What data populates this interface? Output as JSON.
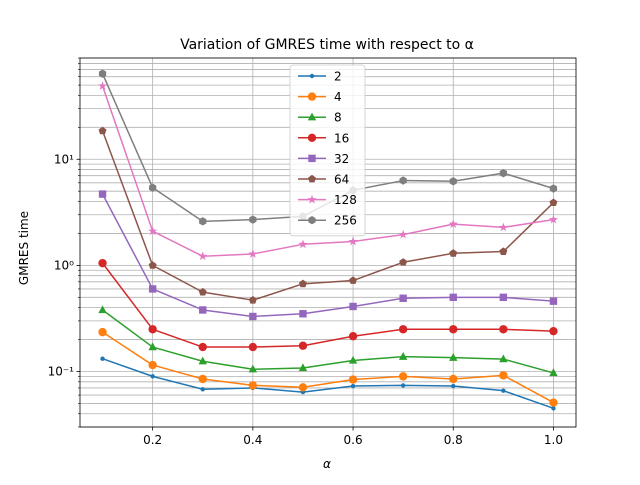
{
  "chart_data": {
    "type": "line",
    "title": "Variation of GMRES time with respect to α",
    "xlabel": "α",
    "ylabel": "GMRES time",
    "yscale": "log",
    "xlim": [
      0.055,
      1.045
    ],
    "ylim": [
      0.03,
      90
    ],
    "grid": true,
    "legend_position": "top-center",
    "x": [
      0.1,
      0.2,
      0.3,
      0.4,
      0.5,
      0.6,
      0.7,
      0.8,
      0.9,
      1.0
    ],
    "x_ticks": [
      "0.2",
      "0.4",
      "0.6",
      "0.8",
      "1.0"
    ],
    "y_ticks": [
      "10⁻¹",
      "10⁰",
      "10¹"
    ],
    "series": [
      {
        "name": "2",
        "color": "#1f77b4",
        "marker": "point",
        "values": [
          0.132,
          0.09,
          0.068,
          0.07,
          0.064,
          0.073,
          0.074,
          0.073,
          0.066,
          0.045
        ]
      },
      {
        "name": "4",
        "color": "#ff7f0e",
        "marker": "circle",
        "values": [
          0.235,
          0.115,
          0.085,
          0.074,
          0.071,
          0.084,
          0.09,
          0.085,
          0.092,
          0.051
        ]
      },
      {
        "name": "8",
        "color": "#2ca02c",
        "marker": "triangle",
        "values": [
          0.38,
          0.17,
          0.125,
          0.105,
          0.108,
          0.127,
          0.138,
          0.135,
          0.131,
          0.097
        ]
      },
      {
        "name": "16",
        "color": "#d62728",
        "marker": "circle",
        "values": [
          1.05,
          0.25,
          0.17,
          0.17,
          0.175,
          0.215,
          0.25,
          0.25,
          0.25,
          0.24
        ]
      },
      {
        "name": "32",
        "color": "#9467bd",
        "marker": "square",
        "values": [
          4.7,
          0.6,
          0.38,
          0.33,
          0.35,
          0.41,
          0.49,
          0.5,
          0.5,
          0.46
        ]
      },
      {
        "name": "64",
        "color": "#8c564b",
        "marker": "pentagon",
        "values": [
          18.5,
          1.0,
          0.56,
          0.47,
          0.67,
          0.72,
          1.07,
          1.3,
          1.35,
          3.9
        ]
      },
      {
        "name": "128",
        "color": "#e377c2",
        "marker": "star",
        "values": [
          49,
          2.1,
          1.22,
          1.28,
          1.58,
          1.68,
          1.95,
          2.45,
          2.28,
          2.7
        ]
      },
      {
        "name": "256",
        "color": "#7f7f7f",
        "marker": "hexagon",
        "values": [
          64,
          5.4,
          2.6,
          2.7,
          2.9,
          5.1,
          6.3,
          6.2,
          7.4,
          5.3
        ]
      }
    ]
  }
}
